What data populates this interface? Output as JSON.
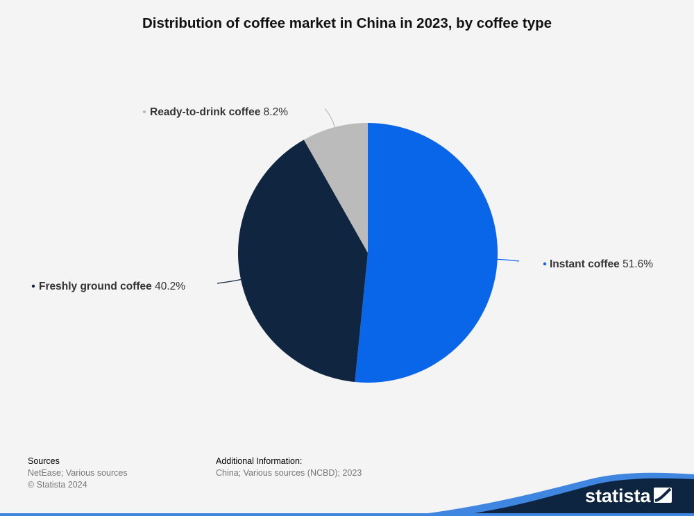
{
  "chart_data": {
    "type": "pie",
    "title": "Distribution of coffee market in China in 2023, by coffee type",
    "slices": [
      {
        "label": "Instant coffee",
        "value": 51.6,
        "display": "51.6%",
        "color": "#0a66e8"
      },
      {
        "label": "Freshly ground coffee",
        "value": 40.2,
        "display": "40.2%",
        "color": "#102540"
      },
      {
        "label": "Ready-to-drink coffee",
        "value": 8.2,
        "display": "8.2%",
        "color": "#bbbbbb"
      }
    ]
  },
  "footer": {
    "sources_heading": "Sources",
    "sources_line1": "NetEase; Various sources",
    "sources_line2": "© Statista 2024",
    "additional_heading": "Additional Information:",
    "additional_line1": "China; Various sources (NCBD); 2023"
  },
  "brand": {
    "name": "statista"
  }
}
